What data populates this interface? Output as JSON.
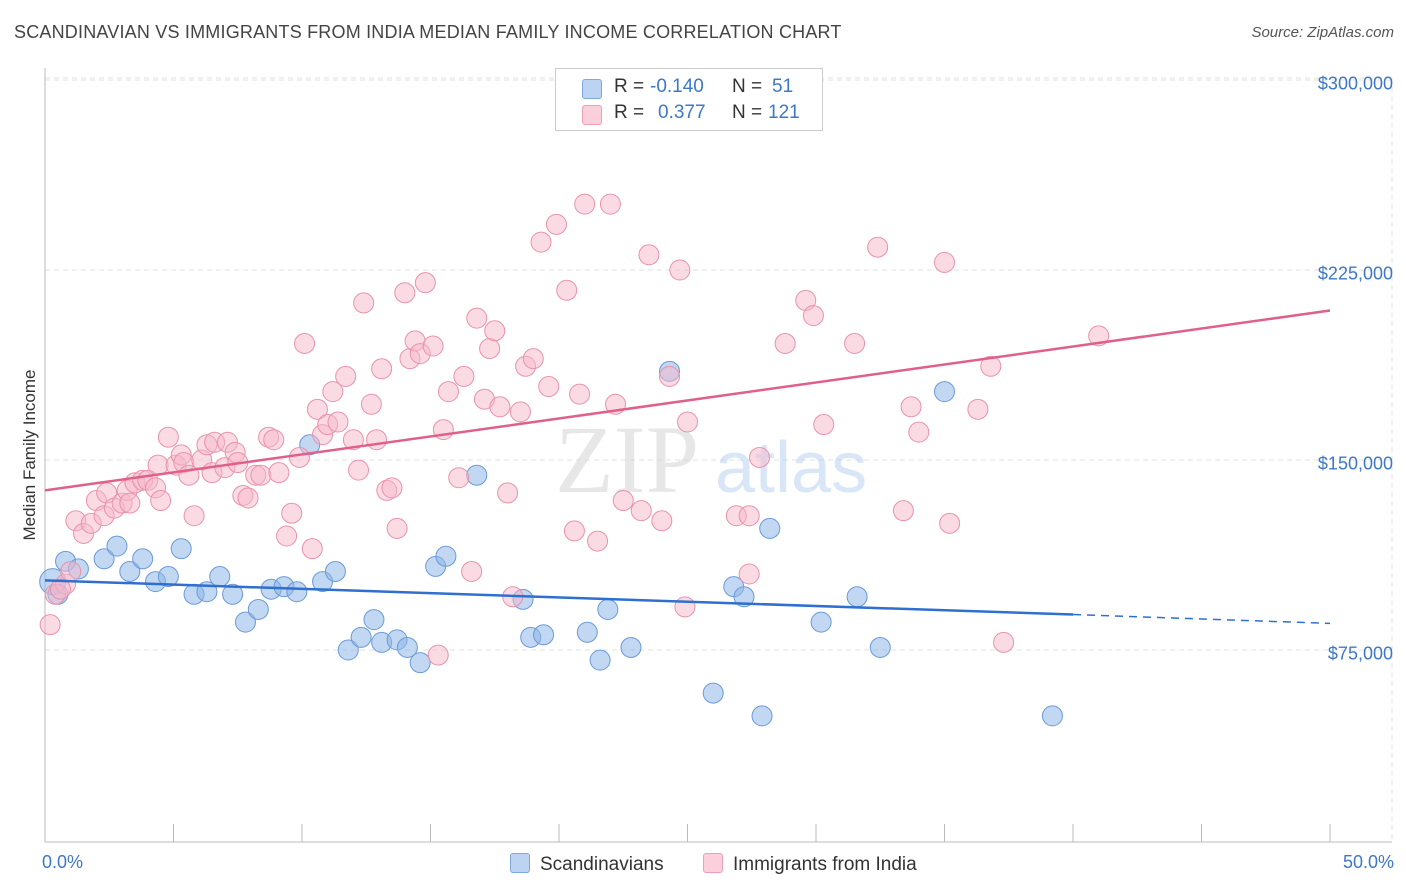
{
  "chart_data": {
    "type": "scatter",
    "title": "SCANDINAVIAN VS IMMIGRANTS FROM INDIA MEDIAN FAMILY INCOME CORRELATION CHART",
    "source": "Source: ZipAtlas.com",
    "ylabel": "Median Family Income",
    "xlim": [
      0,
      50
    ],
    "ylim": [
      20000,
      310000
    ],
    "y_ticks": [
      {
        "value": 75000,
        "label": "$75,000"
      },
      {
        "value": 150000,
        "label": "$150,000"
      },
      {
        "value": 225000,
        "label": "$225,000"
      },
      {
        "value": 300000,
        "label": "$300,000"
      }
    ],
    "x_tick_labels": {
      "left": "0.0%",
      "right": "50.0%"
    },
    "grid": true,
    "watermark": {
      "zip": "ZIP",
      "atlas": "atlas"
    },
    "legend_stats": [
      {
        "r_label": "R =",
        "r_value": "-0.140",
        "n_label": "N =",
        "n_value": "51",
        "color": "#a9c8ef"
      },
      {
        "r_label": "R =",
        "r_value": "0.377",
        "n_label": "N =",
        "n_value": "121",
        "color": "#f6b8c9"
      }
    ],
    "series": [
      {
        "name": "Scandinavians",
        "color": "#8fb6e8",
        "stroke": "#6a9ad8",
        "trend_color": "#2e6fd0",
        "trend": {
          "x0": 0,
          "y0": 102500,
          "x1": 40,
          "y1": 89000,
          "x_dash_end": 50,
          "y_dash_end": 85500
        },
        "points": [
          [
            0.8,
            110000
          ],
          [
            1.3,
            107000
          ],
          [
            2.3,
            111000
          ],
          [
            2.8,
            116000
          ],
          [
            3.3,
            106000
          ],
          [
            3.8,
            111000
          ],
          [
            4.3,
            102000
          ],
          [
            4.8,
            104000
          ],
          [
            5.3,
            115000
          ],
          [
            5.8,
            97000
          ],
          [
            6.3,
            98000
          ],
          [
            6.8,
            104000
          ],
          [
            7.3,
            97000
          ],
          [
            7.8,
            86000
          ],
          [
            8.3,
            91000
          ],
          [
            8.8,
            99000
          ],
          [
            9.3,
            100000
          ],
          [
            9.8,
            98000
          ],
          [
            10.3,
            156000
          ],
          [
            10.8,
            102000
          ],
          [
            11.3,
            106000
          ],
          [
            11.8,
            75000
          ],
          [
            12.3,
            80000
          ],
          [
            12.8,
            87000
          ],
          [
            13.1,
            78000
          ],
          [
            13.7,
            79000
          ],
          [
            14.1,
            76000
          ],
          [
            14.6,
            70000
          ],
          [
            15.2,
            108000
          ],
          [
            15.6,
            112000
          ],
          [
            16.8,
            144000
          ],
          [
            18.6,
            95000
          ],
          [
            18.9,
            80000
          ],
          [
            19.4,
            81000
          ],
          [
            21.1,
            82000
          ],
          [
            21.6,
            71000
          ],
          [
            21.9,
            91000
          ],
          [
            22.8,
            76000
          ],
          [
            24.3,
            185000
          ],
          [
            26.0,
            58000
          ],
          [
            26.8,
            100000
          ],
          [
            27.2,
            96000
          ],
          [
            27.9,
            49000
          ],
          [
            28.2,
            123000
          ],
          [
            30.2,
            86000
          ],
          [
            31.6,
            96000
          ],
          [
            32.5,
            76000
          ],
          [
            35.0,
            177000
          ],
          [
            39.2,
            49000
          ],
          [
            0.3,
            102000
          ],
          [
            0.5,
            97000
          ]
        ]
      },
      {
        "name": "Immigrants from India",
        "color": "#f6b8c9",
        "stroke": "#e892ab",
        "trend_color": "#e0608a",
        "trend": {
          "x0": 0,
          "y0": 138000,
          "x1": 50,
          "y1": 209000
        },
        "points": [
          [
            0.2,
            85000
          ],
          [
            0.4,
            97000
          ],
          [
            0.8,
            101000
          ],
          [
            1.0,
            106000
          ],
          [
            1.2,
            126000
          ],
          [
            1.5,
            121000
          ],
          [
            1.8,
            125000
          ],
          [
            2.0,
            134000
          ],
          [
            2.3,
            128000
          ],
          [
            2.4,
            137000
          ],
          [
            2.7,
            131000
          ],
          [
            3.0,
            133000
          ],
          [
            3.2,
            138000
          ],
          [
            3.3,
            133000
          ],
          [
            3.5,
            141000
          ],
          [
            3.8,
            142000
          ],
          [
            4.0,
            142000
          ],
          [
            4.3,
            139000
          ],
          [
            4.4,
            148000
          ],
          [
            4.5,
            134000
          ],
          [
            4.8,
            159000
          ],
          [
            5.1,
            148000
          ],
          [
            5.3,
            152000
          ],
          [
            5.4,
            149000
          ],
          [
            5.6,
            144000
          ],
          [
            5.8,
            128000
          ],
          [
            6.1,
            150000
          ],
          [
            6.3,
            156000
          ],
          [
            6.5,
            145000
          ],
          [
            6.6,
            157000
          ],
          [
            7.0,
            147000
          ],
          [
            7.1,
            157000
          ],
          [
            7.4,
            153000
          ],
          [
            7.5,
            149000
          ],
          [
            7.7,
            136000
          ],
          [
            7.9,
            135000
          ],
          [
            8.2,
            144000
          ],
          [
            8.4,
            144000
          ],
          [
            8.7,
            159000
          ],
          [
            8.9,
            158000
          ],
          [
            9.1,
            145000
          ],
          [
            9.4,
            120000
          ],
          [
            9.6,
            129000
          ],
          [
            9.9,
            151000
          ],
          [
            10.1,
            196000
          ],
          [
            10.4,
            115000
          ],
          [
            10.6,
            170000
          ],
          [
            10.8,
            160000
          ],
          [
            11.0,
            164000
          ],
          [
            11.2,
            177000
          ],
          [
            11.4,
            165000
          ],
          [
            11.7,
            183000
          ],
          [
            12.0,
            158000
          ],
          [
            12.2,
            146000
          ],
          [
            12.4,
            212000
          ],
          [
            12.7,
            172000
          ],
          [
            12.9,
            158000
          ],
          [
            13.1,
            186000
          ],
          [
            13.3,
            138000
          ],
          [
            13.5,
            139000
          ],
          [
            13.7,
            123000
          ],
          [
            14.0,
            216000
          ],
          [
            14.2,
            190000
          ],
          [
            14.4,
            197000
          ],
          [
            14.6,
            192000
          ],
          [
            14.8,
            220000
          ],
          [
            15.1,
            195000
          ],
          [
            15.3,
            73000
          ],
          [
            15.5,
            162000
          ],
          [
            15.7,
            177000
          ],
          [
            16.1,
            143000
          ],
          [
            16.3,
            183000
          ],
          [
            16.6,
            106000
          ],
          [
            16.8,
            206000
          ],
          [
            17.1,
            174000
          ],
          [
            17.3,
            194000
          ],
          [
            17.5,
            201000
          ],
          [
            17.7,
            171000
          ],
          [
            18.0,
            137000
          ],
          [
            18.2,
            96000
          ],
          [
            18.5,
            169000
          ],
          [
            18.7,
            187000
          ],
          [
            19.0,
            190000
          ],
          [
            19.3,
            236000
          ],
          [
            19.6,
            179000
          ],
          [
            19.9,
            243000
          ],
          [
            20.3,
            217000
          ],
          [
            20.6,
            122000
          ],
          [
            20.8,
            176000
          ],
          [
            21.0,
            251000
          ],
          [
            21.5,
            118000
          ],
          [
            22.0,
            251000
          ],
          [
            22.2,
            172000
          ],
          [
            22.5,
            134000
          ],
          [
            23.2,
            130000
          ],
          [
            23.5,
            231000
          ],
          [
            24.0,
            126000
          ],
          [
            24.3,
            183000
          ],
          [
            24.7,
            225000
          ],
          [
            24.9,
            92000
          ],
          [
            25.0,
            165000
          ],
          [
            26.9,
            128000
          ],
          [
            27.4,
            105000
          ],
          [
            27.8,
            151000
          ],
          [
            28.8,
            196000
          ],
          [
            29.6,
            213000
          ],
          [
            29.9,
            207000
          ],
          [
            30.3,
            164000
          ],
          [
            31.5,
            196000
          ],
          [
            32.4,
            234000
          ],
          [
            33.4,
            130000
          ],
          [
            33.7,
            171000
          ],
          [
            34.0,
            161000
          ],
          [
            35.0,
            228000
          ],
          [
            35.2,
            125000
          ],
          [
            36.3,
            170000
          ],
          [
            36.8,
            187000
          ],
          [
            37.3,
            78000
          ],
          [
            41.0,
            199000
          ],
          [
            27.4,
            128000
          ],
          [
            0.6,
            99000
          ]
        ]
      }
    ]
  }
}
